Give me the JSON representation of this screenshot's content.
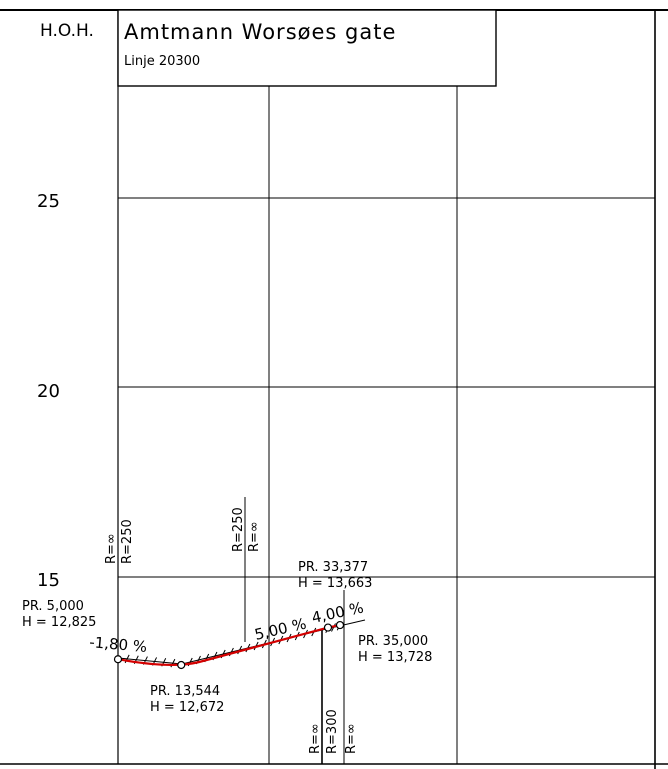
{
  "header": {
    "hoh_label": "H.O.H.",
    "title": "Amtmann Worsøes gate",
    "subtitle": "Linje 20300"
  },
  "elevation_labels": [
    "25",
    "20",
    "15"
  ],
  "curve_labels": {
    "left_a": "R=∞",
    "left_b": "R=250",
    "mid_a": "R=250",
    "mid_b": "R=∞",
    "right_a": "R=∞",
    "right_b": "R=300",
    "right_c": "R=∞"
  },
  "points": [
    {
      "pr_label": "PR. 5,000",
      "h_label": "H = 12,825"
    },
    {
      "pr_label": "PR. 13,544",
      "h_label": "H = 12,672"
    },
    {
      "pr_label": "PR. 33,377",
      "h_label": "H = 13,663"
    },
    {
      "pr_label": "PR. 35,000",
      "h_label": "H = 13,728"
    }
  ],
  "gradients": {
    "left": "-1,80 %",
    "middle": "5,00 %",
    "right": "4,00 %"
  },
  "chart_data": {
    "type": "line",
    "title": "Amtmann Worsøes gate",
    "subtitle": "Linje 20300",
    "ylabel": "H.O.H.",
    "y_ticks": [
      15,
      20,
      25
    ],
    "series": [
      {
        "name": "",
        "x": [
          5.0,
          13.544,
          33.377,
          35.0
        ],
        "y": [
          12.825,
          12.672,
          13.663,
          13.728
        ]
      }
    ],
    "colors": {
      "profile": "#d40000",
      "lines": "#000000"
    }
  }
}
